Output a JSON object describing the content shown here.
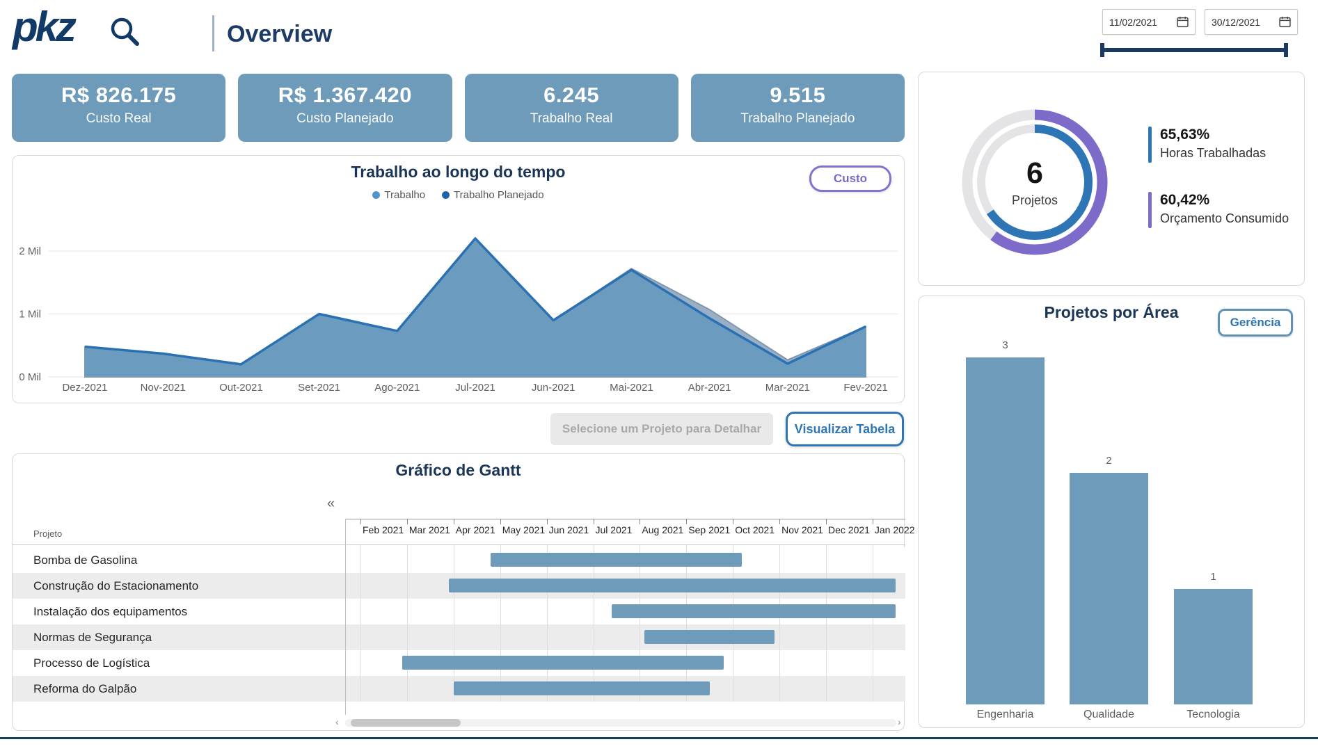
{
  "header": {
    "logo_text": "pkz",
    "page_title": "Overview",
    "date_from": "11/02/2021",
    "date_to": "30/12/2021"
  },
  "kpis": [
    {
      "value": "R$ 826.175",
      "label": "Custo Real"
    },
    {
      "value": "R$ 1.367.420",
      "label": "Custo Planejado"
    },
    {
      "value": "6.245",
      "label": "Trabalho Real"
    },
    {
      "value": "9.515",
      "label": "Trabalho Planejado"
    }
  ],
  "work_card": {
    "toggle_button": "Custo"
  },
  "actions": {
    "select_project_button": "Selecione um Projeto para Detalhar",
    "view_table_button": "Visualizar Tabela"
  },
  "area_card": {
    "button": "Gerência"
  },
  "colors": {
    "steel_blue": "#6D9BB9",
    "accent_blue": "#2E75B6",
    "accent_purple": "#7E6BC9",
    "navy": "#1B3A5F"
  },
  "chart_data": [
    {
      "id": "work_over_time",
      "type": "area",
      "title": "Trabalho ao longo do tempo",
      "categories": [
        "Dez-2021",
        "Nov-2021",
        "Out-2021",
        "Set-2021",
        "Ago-2021",
        "Jul-2021",
        "Jun-2021",
        "Mai-2021",
        "Abr-2021",
        "Mar-2021",
        "Fev-2021"
      ],
      "series": [
        {
          "name": "Trabalho Planejado",
          "color": "#1F63A8",
          "values": [
            0.48,
            0.37,
            0.2,
            1.0,
            0.73,
            2.2,
            0.9,
            1.72,
            1.07,
            0.27,
            0.8
          ]
        },
        {
          "name": "Trabalho",
          "color": "#4E95CE",
          "values": [
            0.48,
            0.37,
            0.2,
            1.0,
            0.73,
            2.2,
            0.9,
            1.7,
            0.93,
            0.21,
            0.8
          ]
        }
      ],
      "legend": [
        {
          "label": "Trabalho",
          "color": "#4E95CE"
        },
        {
          "label": "Trabalho Planejado",
          "color": "#1F63A8"
        }
      ],
      "ylim": [
        0,
        2.5
      ],
      "yticks": [
        {
          "value": 0,
          "label": "0 Mil"
        },
        {
          "value": 1,
          "label": "1 Mil"
        },
        {
          "value": 2,
          "label": "2 Mil"
        }
      ],
      "grid": true,
      "legend_position": "top"
    },
    {
      "id": "projects_donut",
      "type": "pie",
      "center_value": "6",
      "center_label": "Projetos",
      "rings": [
        {
          "name": "Horas Trabalhadas",
          "percent": 65.63,
          "label": "65,63%",
          "color": "#2E75B6",
          "ring": "inner"
        },
        {
          "name": "Orçamento Consumido",
          "percent": 60.42,
          "label": "60,42%",
          "color": "#7E6BC9",
          "ring": "outer"
        }
      ]
    },
    {
      "id": "projects_by_area",
      "type": "bar",
      "title": "Projetos por Área",
      "categories": [
        "Engenharia",
        "Qualidade",
        "Tecnologia"
      ],
      "values": [
        3,
        2,
        1
      ],
      "ylim": [
        0,
        3.3
      ]
    },
    {
      "id": "gantt",
      "type": "table",
      "title": "Gráfico de Gantt",
      "column_header": "Projeto",
      "timeline_months": [
        "Feb 2021",
        "Mar 2021",
        "Apr 2021",
        "May 2021",
        "Jun 2021",
        "Jul 2021",
        "Aug 2021",
        "Sep 2021",
        "Oct 2021",
        "Nov 2021",
        "Dec 2021",
        "Jan 2022"
      ],
      "rows": [
        {
          "project": "Bomba de Gasolina",
          "start_month": 2.8,
          "end_month": 8.2
        },
        {
          "project": "Construção do Estacionamento",
          "start_month": 1.9,
          "end_month": 11.5
        },
        {
          "project": "Instalação dos equipamentos",
          "start_month": 5.4,
          "end_month": 11.5
        },
        {
          "project": "Normas de Segurança",
          "start_month": 6.1,
          "end_month": 8.9
        },
        {
          "project": "Processo de Logística",
          "start_month": 0.9,
          "end_month": 7.8
        },
        {
          "project": "Reforma do Galpão",
          "start_month": 2.0,
          "end_month": 7.5
        }
      ]
    }
  ]
}
